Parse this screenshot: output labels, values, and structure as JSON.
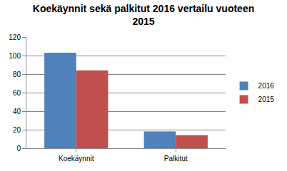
{
  "chart_data": {
    "type": "bar",
    "title": "Koekäynnit sekä palkitut 2016 vertailu vuoteen\n2015",
    "categories": [
      "Koekäynnit",
      "Palkitut"
    ],
    "series": [
      {
        "name": "2016",
        "color": "#4f81bd",
        "values": [
          103,
          18
        ]
      },
      {
        "name": "2015",
        "color": "#c0504d",
        "values": [
          84,
          14
        ]
      }
    ],
    "ylim": [
      0,
      120
    ],
    "yticks": [
      0,
      20,
      40,
      60,
      80,
      100,
      120
    ],
    "grid": true,
    "legend": "right"
  }
}
